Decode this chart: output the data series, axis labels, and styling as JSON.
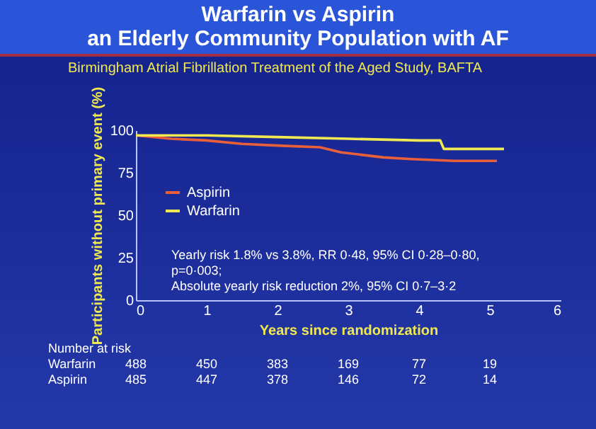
{
  "chart_data": {
    "type": "line",
    "title": "Warfarin vs Aspirin\nan Elderly Community Population with AF",
    "subtitle": "Birmingham Atrial Fibrillation Treatment of the Aged Study, BAFTA",
    "xlabel": "Years since randomization",
    "ylabel": "Participants without primary event (%)",
    "xlim": [
      0,
      6
    ],
    "xticks": [
      0,
      1,
      2,
      3,
      4,
      5,
      6
    ],
    "ylim": [
      0,
      100
    ],
    "yticks": [
      0,
      25,
      50,
      75,
      100
    ],
    "grid": false,
    "legend": "top left",
    "series": [
      {
        "name": "Aspirin",
        "color": "#e8603a",
        "x": [
          0,
          0.5,
          1,
          1.5,
          2,
          2.6,
          2.9,
          3.5,
          3.9,
          4.5,
          5.1
        ],
        "values": [
          97,
          95,
          94,
          92,
          91,
          90,
          87,
          84,
          83,
          82,
          82
        ]
      },
      {
        "name": "Warfarin",
        "color": "#f0e850",
        "x": [
          0,
          1,
          2,
          3,
          4,
          4.3,
          4.35,
          5.2
        ],
        "values": [
          97,
          97,
          96,
          95,
          94,
          94,
          89,
          89
        ]
      }
    ],
    "annotations": [
      "Yearly risk 1.8% vs 3.8%, RR 0·48, 95% CI 0·28–0·80,",
      "p=0·003;",
      "Absolute yearly risk reduction 2%, 95% CI 0·7–3·2",
      "Number at risk",
      "Warfarin 488 450 383 169 77 19",
      "Aspirin 485 447 378 146 72 14"
    ]
  }
}
